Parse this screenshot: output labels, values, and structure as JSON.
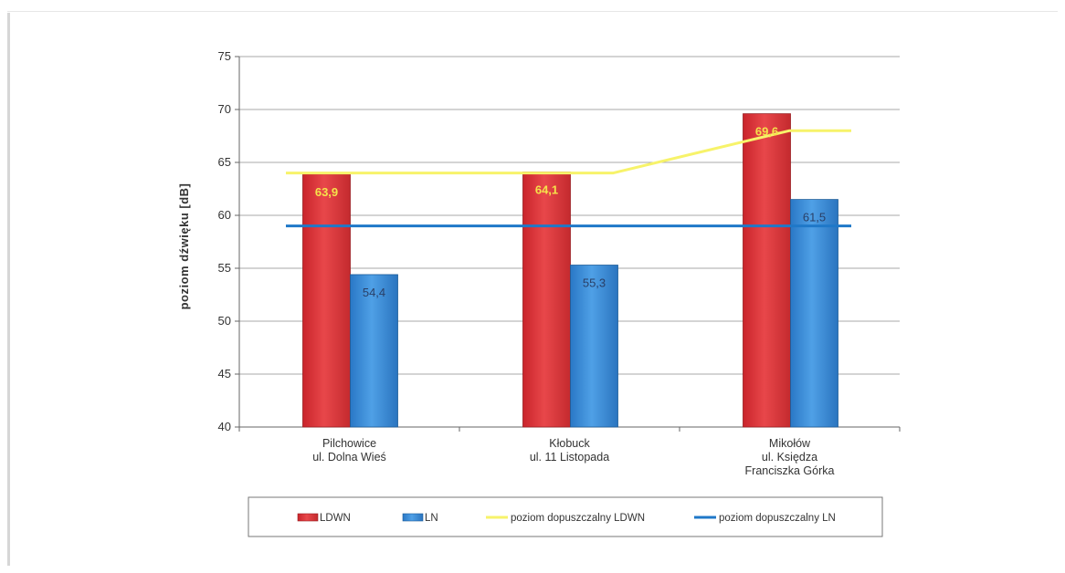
{
  "chart_data": {
    "type": "bar",
    "title": "",
    "xlabel": "",
    "ylabel": "poziom dźwięku [dB]",
    "ylim": [
      40,
      75
    ],
    "yticks": [
      40,
      45,
      50,
      55,
      60,
      65,
      70,
      75
    ],
    "grid": true,
    "legend_position": "bottom",
    "categories": [
      [
        "Pilchowice",
        "ul. Dolna Wieś"
      ],
      [
        "Kłobuck",
        "ul. 11 Listopada"
      ],
      [
        "Mikołów",
        "ul. Księdza",
        "Franciszka Górka"
      ]
    ],
    "series": [
      {
        "name": "LDWN",
        "kind": "bar",
        "color": "#e03a3e",
        "values": [
          63.9,
          64.1,
          69.6
        ],
        "labels": [
          "63,9",
          "64,1",
          "69,6"
        ]
      },
      {
        "name": "LN",
        "kind": "bar",
        "color": "#3c8ddb",
        "values": [
          54.4,
          55.3,
          61.5
        ],
        "labels": [
          "54,4",
          "55,3",
          "61,5"
        ]
      },
      {
        "name": "poziom dopuszczalny LDWN",
        "kind": "line",
        "color": "#f7f36a",
        "values": [
          64,
          64,
          68
        ]
      },
      {
        "name": "poziom dopuszczalny LN",
        "kind": "line",
        "color": "#1f78c8",
        "values": [
          59,
          59,
          59
        ]
      }
    ]
  }
}
